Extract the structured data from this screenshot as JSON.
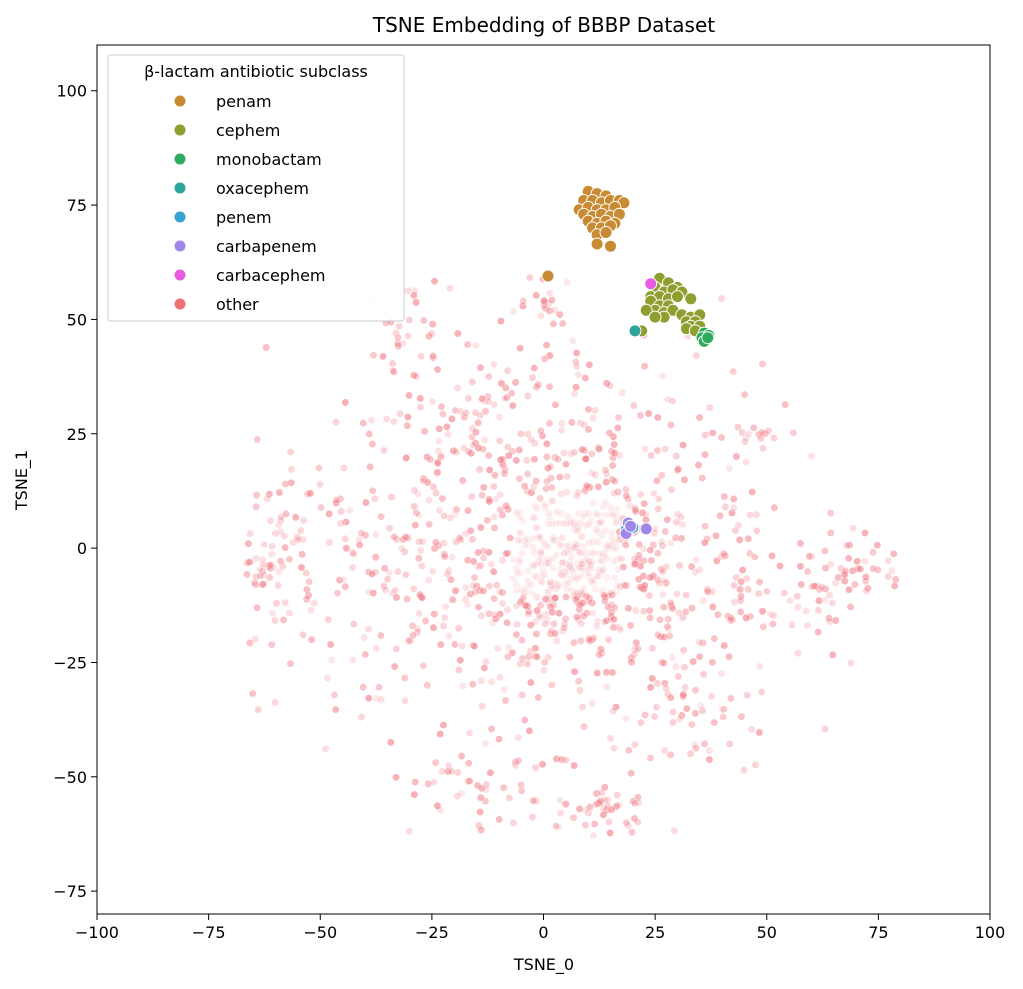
{
  "chart_data": {
    "type": "scatter",
    "title": "TSNE Embedding of BBBP Dataset",
    "xlabel": "TSNE_0",
    "ylabel": "TSNE_1",
    "xlim": [
      -100,
      100
    ],
    "ylim": [
      -80,
      110
    ],
    "xticks": [
      "−100",
      "−75",
      "−50",
      "−25",
      "0",
      "25",
      "50",
      "75",
      "100"
    ],
    "xtick_values": [
      -100,
      -75,
      -50,
      -25,
      0,
      25,
      50,
      75,
      100
    ],
    "yticks": [
      "−75",
      "−50",
      "−25",
      "0",
      "25",
      "50",
      "75",
      "100"
    ],
    "ytick_values": [
      -75,
      -50,
      -25,
      0,
      25,
      50,
      75,
      100
    ],
    "grid": false,
    "legend": {
      "title": "β-lactam antibiotic subclass",
      "placement": "top-left"
    },
    "series": [
      {
        "name": "penam",
        "color": "#c88a32",
        "points": [
          [
            10,
            78
          ],
          [
            12,
            77.5
          ],
          [
            14,
            77
          ],
          [
            9,
            76
          ],
          [
            11,
            76
          ],
          [
            13,
            75.5
          ],
          [
            15,
            76
          ],
          [
            17,
            76
          ],
          [
            18,
            75.5
          ],
          [
            8,
            74
          ],
          [
            10,
            74.5
          ],
          [
            12,
            74
          ],
          [
            14,
            74
          ],
          [
            16,
            74.5
          ],
          [
            9,
            73
          ],
          [
            11,
            72.5
          ],
          [
            13,
            73
          ],
          [
            15,
            72.5
          ],
          [
            17,
            73
          ],
          [
            10,
            71.5
          ],
          [
            12,
            71
          ],
          [
            14,
            71.5
          ],
          [
            16,
            71
          ],
          [
            11,
            70
          ],
          [
            13,
            70
          ],
          [
            15,
            70.5
          ],
          [
            12,
            68.5
          ],
          [
            14,
            69
          ],
          [
            12,
            66.5
          ],
          [
            15,
            66
          ],
          [
            1,
            59.5
          ]
        ]
      },
      {
        "name": "cephem",
        "color": "#8f9e2e",
        "points": [
          [
            26,
            59
          ],
          [
            28,
            58
          ],
          [
            30,
            57
          ],
          [
            25,
            57
          ],
          [
            27,
            56
          ],
          [
            29,
            56.5
          ],
          [
            31,
            56
          ],
          [
            24,
            55
          ],
          [
            26,
            55
          ],
          [
            28,
            54.5
          ],
          [
            30,
            55
          ],
          [
            24,
            54
          ],
          [
            26,
            53
          ],
          [
            28,
            53
          ],
          [
            25,
            52
          ],
          [
            27,
            51.5
          ],
          [
            23,
            52
          ],
          [
            29,
            52
          ],
          [
            27,
            50.5
          ],
          [
            25,
            50.5
          ],
          [
            33,
            54.5
          ],
          [
            31,
            51
          ],
          [
            33,
            50.5
          ],
          [
            35,
            51
          ],
          [
            32,
            49.5
          ],
          [
            34,
            49.5
          ],
          [
            33,
            48.5
          ],
          [
            35,
            48.5
          ],
          [
            32,
            48
          ],
          [
            34,
            47.5
          ],
          [
            22,
            47.5
          ]
        ]
      },
      {
        "name": "monobactam",
        "color": "#2eaa5c",
        "points": [
          [
            36,
            47
          ],
          [
            37,
            46.5
          ],
          [
            35.5,
            46
          ],
          [
            36,
            45.2
          ],
          [
            36.8,
            46
          ]
        ]
      },
      {
        "name": "oxacephem",
        "color": "#2ea59a",
        "points": [
          [
            20.5,
            47.5
          ]
        ]
      },
      {
        "name": "penem",
        "color": "#36a2cf",
        "points": [
          [
            20,
            4.5
          ],
          [
            18.5,
            4
          ]
        ]
      },
      {
        "name": "carbapenem",
        "color": "#9e87e8",
        "points": [
          [
            19,
            5.5
          ],
          [
            18.5,
            3.2
          ],
          [
            23,
            4.2
          ],
          [
            19.5,
            4.8
          ]
        ]
      },
      {
        "name": "carbacephem",
        "color": "#e75ce0",
        "points": [
          [
            24,
            57.8
          ]
        ]
      },
      {
        "name": "other",
        "color": "#f0707a",
        "generated_count": 1400
      }
    ]
  }
}
